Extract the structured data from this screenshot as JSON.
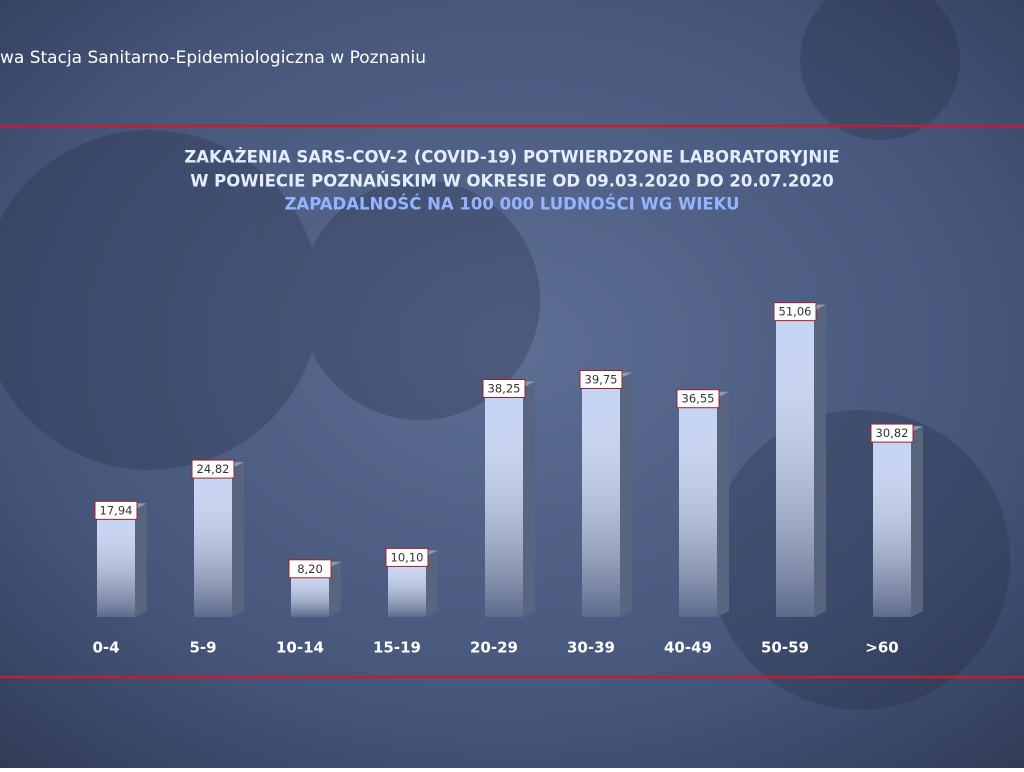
{
  "header": "wa Stacja Sanitarno-Epidemiologiczna w Poznaniu",
  "chart_data": {
    "type": "bar",
    "title": [
      "ZAKAŻENIA SARS-COV-2 (COVID-19) POTWIERDZONE LABORATORYJNIE",
      "W POWIECIE POZNAŃSKIM W OKRESIE OD 09.03.2020 DO 20.07.2020"
    ],
    "subtitle": "ZAPADALNOŚĆ NA 100 000 LUDNOŚCI WG WIEKU",
    "categories": [
      "0-4",
      "5-9",
      "10-14",
      "15-19",
      "20-29",
      "30-39",
      "40-49",
      "50-59",
      ">60"
    ],
    "values": [
      17.94,
      24.82,
      8.2,
      10.1,
      38.25,
      39.75,
      36.55,
      51.06,
      30.82
    ],
    "value_labels": [
      "17,94",
      "24,82",
      "8,20",
      "10,10",
      "38,25",
      "39,75",
      "36,55",
      "51,06",
      "30,82"
    ],
    "color": "#c4d2f4"
  }
}
